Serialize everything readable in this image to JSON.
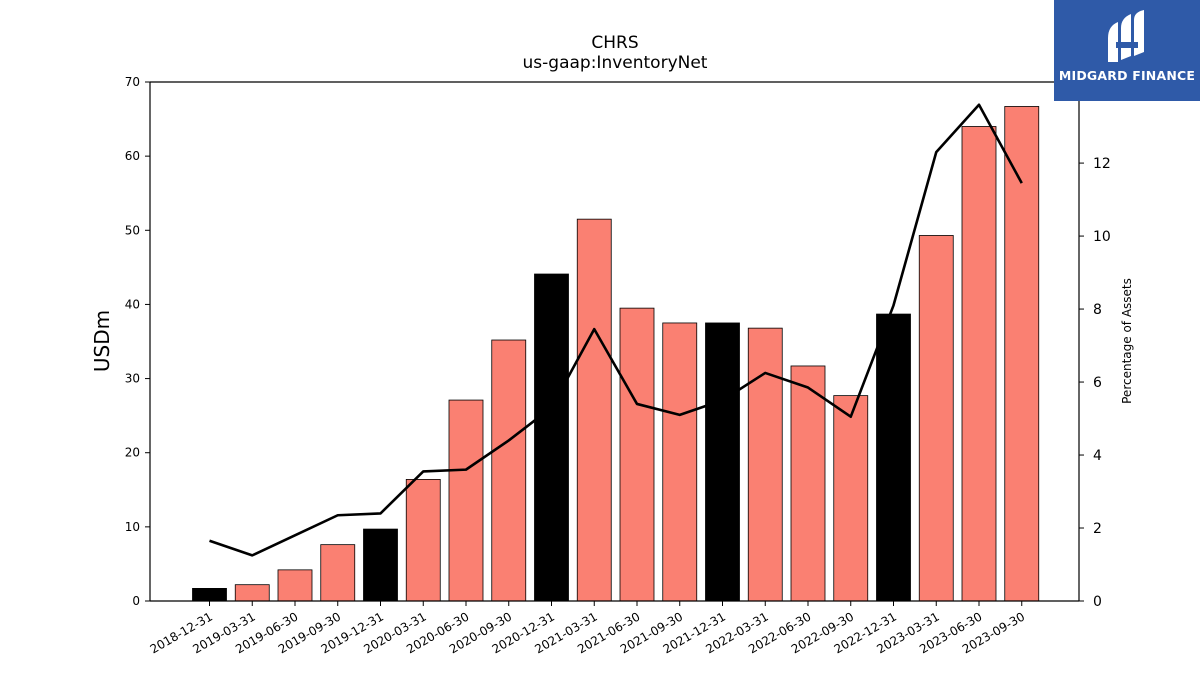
{
  "chart_data": {
    "type": "bar",
    "title": "CHRS",
    "subtitle": "us-gaap:InventoryNet",
    "ylabel": "USDm",
    "y2label": "Percentage of Assets",
    "ylim": [
      0,
      70
    ],
    "y2lim": [
      0,
      14.222
    ],
    "yticks": [
      "0",
      "10",
      "20",
      "30",
      "40",
      "50",
      "60",
      "70"
    ],
    "y2ticks": [
      "0",
      "2",
      "4",
      "6",
      "8",
      "10",
      "12"
    ],
    "grid": false,
    "categories": [
      "2018-12-31",
      "2019-03-31",
      "2019-06-30",
      "2019-09-30",
      "2019-12-31",
      "2020-03-31",
      "2020-06-30",
      "2020-09-30",
      "2020-12-31",
      "2021-03-31",
      "2021-06-30",
      "2021-09-30",
      "2021-12-31",
      "2022-03-31",
      "2022-06-30",
      "2022-09-30",
      "2022-12-31",
      "2023-03-31",
      "2023-06-30",
      "2023-09-30"
    ],
    "series": [
      {
        "type": "bar",
        "axis": "left",
        "values": [
          1.7,
          2.2,
          4.2,
          7.6,
          9.7,
          16.4,
          27.1,
          35.2,
          44.1,
          51.5,
          39.5,
          37.5,
          37.5,
          36.8,
          31.7,
          27.7,
          38.7,
          49.3,
          64.0,
          66.7
        ],
        "colors": [
          "#000000",
          "#fa8072",
          "#fa8072",
          "#fa8072",
          "#000000",
          "#fa8072",
          "#fa8072",
          "#fa8072",
          "#000000",
          "#fa8072",
          "#fa8072",
          "#fa8072",
          "#000000",
          "#fa8072",
          "#fa8072",
          "#fa8072",
          "#000000",
          "#fa8072",
          "#fa8072",
          "#fa8072"
        ]
      },
      {
        "type": "line",
        "axis": "right",
        "color": "#000000",
        "values": [
          1.65,
          1.25,
          1.8,
          2.35,
          2.4,
          3.55,
          3.6,
          4.4,
          5.3,
          7.45,
          5.4,
          5.1,
          5.5,
          6.25,
          5.85,
          5.05,
          8.1,
          12.3,
          13.6,
          11.45
        ]
      }
    ]
  },
  "logo": {
    "text": "MIDGARD FINANCE"
  }
}
